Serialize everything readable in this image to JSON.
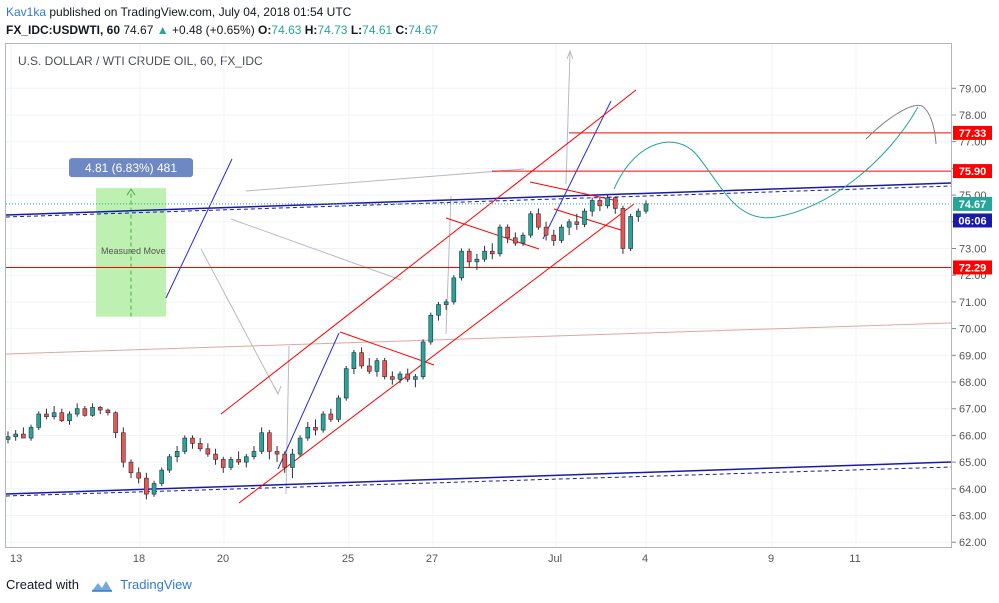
{
  "header": {
    "author": "Kav1ka",
    "published_text": "published on TradingView.com, July 04, 2018 01:54 UTC",
    "symbol_interval": "FX_IDC:USDWTI, 60",
    "last": "74.67",
    "change": "+0.48 (+0.65%)",
    "open_label": "O:",
    "open": "74.63",
    "high_label": "H:",
    "high": "74.73",
    "low_label": "L:",
    "low": "74.61",
    "close_label": "C:",
    "close": "74.67"
  },
  "footer": {
    "created_with": "Created with",
    "brand": "TradingView"
  },
  "colors": {
    "up": "#26a69a",
    "down": "#ef5350",
    "channel": "#ff0000",
    "trend": "#1a1aa8",
    "projection": "#26a69a",
    "measure_fill": "#b7f0a8"
  },
  "chart_data": {
    "type": "candlestick",
    "title": "U.S. DOLLAR / WTI CRUDE OIL, 60, FX_IDC",
    "ylim": [
      61.6,
      79.3
    ],
    "y_ticks": [
      "62.00",
      "63.00",
      "64.00",
      "65.00",
      "66.00",
      "67.00",
      "68.00",
      "69.00",
      "70.00",
      "71.00",
      "72.00",
      "73.00",
      "74.00",
      "75.00",
      "76.00",
      "77.00",
      "78.00",
      "79.00"
    ],
    "x_ticks": [
      "13",
      "18",
      "20",
      "25",
      "27",
      "Jul",
      "4",
      "9",
      "11"
    ],
    "price_tags": [
      {
        "label": "77.33",
        "value": 77.33,
        "color": "#ff0000"
      },
      {
        "label": "75.90",
        "value": 75.9,
        "color": "#ff0000"
      },
      {
        "label": "74.67",
        "value": 74.67,
        "color": "#26a69a"
      },
      {
        "label": "06:06",
        "value": 74.05,
        "color": "#1a1aa8"
      },
      {
        "label": "72.29",
        "value": 72.29,
        "color": "#ff0000"
      }
    ],
    "horizontal_levels": [
      77.33,
      75.9,
      72.29
    ],
    "measure": {
      "label": "4.81 (6.83%) 481",
      "caption": "Measured Move",
      "from": 70.45,
      "to": 75.26
    },
    "series": [
      {
        "values": [
          [
            65.85,
            66.15,
            65.7,
            65.95
          ],
          [
            65.95,
            66.2,
            65.8,
            66.05
          ],
          [
            66.05,
            66.3,
            65.9,
            65.9
          ],
          [
            65.9,
            66.4,
            65.8,
            66.3
          ],
          [
            66.3,
            66.9,
            66.2,
            66.8
          ],
          [
            66.8,
            67.0,
            66.6,
            66.7
          ],
          [
            66.7,
            67.1,
            66.6,
            66.85
          ],
          [
            66.85,
            67.0,
            66.5,
            66.55
          ],
          [
            66.55,
            66.9,
            66.4,
            66.8
          ],
          [
            66.8,
            67.2,
            66.7,
            67.0
          ],
          [
            67.0,
            67.1,
            66.7,
            66.75
          ],
          [
            66.75,
            67.2,
            66.7,
            67.05
          ],
          [
            67.05,
            67.1,
            66.8,
            66.95
          ],
          [
            66.95,
            67.0,
            66.75,
            66.85
          ],
          [
            66.85,
            66.9,
            65.9,
            66.1
          ],
          [
            66.1,
            66.3,
            64.8,
            65.0
          ],
          [
            65.0,
            65.1,
            64.4,
            64.6
          ],
          [
            64.6,
            64.8,
            64.2,
            64.4
          ],
          [
            64.4,
            64.6,
            63.6,
            63.8
          ],
          [
            63.8,
            64.3,
            63.7,
            64.2
          ],
          [
            64.2,
            64.8,
            64.1,
            64.7
          ],
          [
            64.7,
            65.3,
            64.6,
            65.2
          ],
          [
            65.2,
            65.6,
            65.0,
            65.4
          ],
          [
            65.4,
            66.0,
            65.3,
            65.9
          ],
          [
            65.9,
            66.0,
            65.5,
            65.7
          ],
          [
            65.7,
            65.9,
            65.4,
            65.5
          ],
          [
            65.5,
            65.7,
            65.2,
            65.3
          ],
          [
            65.3,
            65.5,
            64.9,
            65.1
          ],
          [
            65.1,
            65.2,
            64.6,
            64.8
          ],
          [
            64.8,
            65.2,
            64.7,
            65.1
          ],
          [
            65.1,
            65.4,
            64.9,
            65.0
          ],
          [
            65.0,
            65.3,
            64.8,
            65.2
          ],
          [
            65.2,
            65.6,
            65.1,
            65.4
          ],
          [
            65.4,
            66.3,
            65.3,
            66.1
          ],
          [
            66.1,
            66.2,
            65.1,
            65.4
          ],
          [
            65.4,
            65.6,
            65.0,
            65.3
          ],
          [
            65.3,
            65.4,
            64.6,
            64.8
          ],
          [
            64.8,
            65.5,
            64.4,
            65.3
          ],
          [
            65.3,
            66.0,
            65.2,
            65.9
          ],
          [
            65.9,
            66.5,
            65.8,
            66.3
          ],
          [
            66.3,
            66.6,
            66.0,
            66.2
          ],
          [
            66.2,
            66.9,
            66.1,
            66.8
          ],
          [
            66.8,
            67.0,
            66.5,
            66.6
          ],
          [
            66.6,
            67.5,
            66.5,
            67.4
          ],
          [
            67.4,
            68.6,
            67.3,
            68.5
          ],
          [
            68.5,
            69.2,
            68.3,
            69.1
          ],
          [
            69.1,
            69.3,
            68.5,
            68.6
          ],
          [
            68.6,
            68.9,
            68.3,
            68.4
          ],
          [
            68.4,
            68.9,
            68.2,
            68.8
          ],
          [
            68.8,
            68.9,
            68.1,
            68.2
          ],
          [
            68.2,
            68.4,
            67.9,
            68.1
          ],
          [
            68.1,
            68.4,
            67.95,
            68.3
          ],
          [
            68.3,
            68.5,
            68.0,
            68.1
          ],
          [
            68.1,
            68.3,
            67.8,
            68.2
          ],
          [
            68.2,
            69.6,
            68.1,
            69.5
          ],
          [
            69.5,
            70.6,
            69.4,
            70.5
          ],
          [
            70.5,
            71.0,
            70.3,
            70.9
          ],
          [
            70.9,
            71.1,
            70.7,
            71.0
          ],
          [
            71.0,
            72.0,
            70.9,
            71.9
          ],
          [
            71.9,
            73.0,
            71.8,
            72.9
          ],
          [
            72.9,
            73.0,
            72.3,
            72.5
          ],
          [
            72.5,
            72.8,
            72.2,
            72.6
          ],
          [
            72.6,
            73.1,
            72.5,
            72.9
          ],
          [
            72.9,
            73.2,
            72.6,
            72.8
          ],
          [
            72.8,
            73.9,
            72.7,
            73.8
          ],
          [
            73.8,
            73.9,
            73.2,
            73.4
          ],
          [
            73.4,
            73.6,
            73.1,
            73.2
          ],
          [
            73.2,
            73.6,
            73.1,
            73.5
          ],
          [
            73.5,
            74.4,
            73.4,
            74.3
          ],
          [
            74.3,
            74.5,
            73.7,
            73.8
          ],
          [
            73.8,
            74.0,
            73.3,
            73.5
          ],
          [
            73.5,
            73.7,
            73.1,
            73.3
          ],
          [
            73.3,
            73.9,
            73.2,
            73.8
          ],
          [
            73.8,
            74.1,
            73.5,
            74.0
          ],
          [
            74.0,
            74.3,
            73.7,
            73.9
          ],
          [
            73.9,
            74.5,
            73.8,
            74.4
          ],
          [
            74.4,
            74.9,
            74.2,
            74.8
          ],
          [
            74.8,
            74.9,
            74.4,
            74.6
          ],
          [
            74.6,
            75.0,
            74.5,
            74.9
          ],
          [
            74.9,
            74.95,
            74.3,
            74.5
          ],
          [
            74.5,
            74.6,
            72.8,
            73.0
          ],
          [
            73.0,
            74.3,
            72.9,
            74.2
          ],
          [
            74.2,
            74.5,
            74.0,
            74.4
          ],
          [
            74.4,
            74.8,
            74.3,
            74.67
          ]
        ]
      }
    ]
  }
}
